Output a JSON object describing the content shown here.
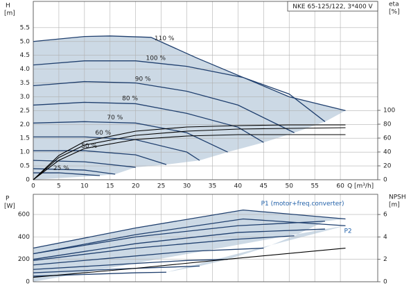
{
  "chart_data": [
    {
      "type": "line",
      "title": "NKE 65-125/122, 3*400 V",
      "y_label": "H",
      "y_unit": "[m]",
      "y2_label": "eta",
      "y2_unit": "[%]",
      "x_label": "Q [m³/h]",
      "xlim": [
        0,
        67.3
      ],
      "xticks": [
        0,
        5,
        10,
        15,
        20,
        25,
        30,
        35,
        40,
        45,
        50,
        55,
        60
      ],
      "ylim": [
        0,
        6.45
      ],
      "yticks": [
        0,
        0.5,
        {
          "value": 1,
          "label": "1.0"
        },
        1.5,
        {
          "value": 2,
          "label": "2.0"
        },
        2.5,
        {
          "value": 3,
          "label": "3.0"
        },
        3.5,
        {
          "value": 4,
          "label": "4.0"
        },
        4.5,
        {
          "value": 5,
          "label": "5.0"
        },
        5.5
      ],
      "y2lim": [
        0,
        257
      ],
      "y2ticks": [
        0,
        20,
        40,
        60,
        80,
        100
      ],
      "grid": true,
      "curve_label": "inline",
      "shade": "#c3d2e0",
      "series": [
        {
          "name": "110 %",
          "color": "#1f3f6e",
          "x": [
            0,
            10,
            15,
            23,
            32,
            41,
            50,
            61
          ],
          "values": [
            5.0,
            5.18,
            5.2,
            5.15,
            4.4,
            3.7,
            3.0,
            2.5
          ]
        },
        {
          "name": "100 %",
          "color": "#1f3f6e",
          "x": [
            0,
            10,
            20,
            30,
            41,
            50,
            57
          ],
          "values": [
            4.15,
            4.3,
            4.3,
            4.1,
            3.7,
            3.1,
            2.1
          ]
        },
        {
          "name": "90 %",
          "color": "#1f3f6e",
          "x": [
            0,
            10,
            20,
            30,
            40,
            51
          ],
          "values": [
            3.4,
            3.55,
            3.5,
            3.2,
            2.7,
            1.7
          ]
        },
        {
          "name": "80 %",
          "color": "#1f3f6e",
          "x": [
            0,
            10,
            20,
            30,
            40,
            45
          ],
          "values": [
            2.7,
            2.8,
            2.75,
            2.4,
            1.9,
            1.35
          ]
        },
        {
          "name": "70 %",
          "color": "#1f3f6e",
          "x": [
            0,
            10,
            20,
            30,
            38
          ],
          "values": [
            2.05,
            2.1,
            2.05,
            1.7,
            1.0
          ]
        },
        {
          "name": "60 %",
          "color": "#1f3f6e",
          "x": [
            0,
            10,
            20,
            30,
            32.5
          ],
          "values": [
            1.55,
            1.55,
            1.45,
            1.0,
            0.7
          ]
        },
        {
          "name": "50 %",
          "color": "#1f3f6e",
          "x": [
            0,
            10,
            20,
            26
          ],
          "values": [
            1.05,
            1.05,
            0.9,
            0.55
          ]
        },
        {
          "color": "#1f3f6e",
          "x": [
            0,
            10,
            20
          ],
          "values": [
            0.7,
            0.65,
            0.45
          ]
        },
        {
          "color": "#1f3f6e",
          "x": [
            0,
            10,
            16
          ],
          "values": [
            0.4,
            0.35,
            0.2
          ]
        },
        {
          "name": "25 %",
          "color": "#1f3f6e",
          "x": [
            0,
            5,
            13
          ],
          "values": [
            0.25,
            0.25,
            0.15
          ]
        },
        {
          "color": "#000000",
          "axis": "y2",
          "x": [
            0,
            5,
            10,
            20,
            30,
            40,
            50,
            61
          ],
          "values": [
            0,
            35,
            55,
            70,
            76,
            78,
            79,
            79
          ]
        },
        {
          "color": "#000000",
          "axis": "y2",
          "x": [
            0,
            5,
            10,
            20,
            30,
            40,
            50,
            61
          ],
          "values": [
            0,
            32,
            50,
            64,
            70,
            73,
            74,
            75
          ]
        },
        {
          "color": "#000000",
          "axis": "y2",
          "x": [
            0,
            5,
            10,
            20,
            30,
            40,
            50,
            61
          ],
          "values": [
            0,
            28,
            45,
            58,
            63,
            65,
            65,
            65
          ]
        }
      ]
    },
    {
      "type": "line",
      "y_label": "P",
      "y_unit": "[W]",
      "y2_label": "NPSH",
      "y2_unit": "[m]",
      "xlim": [
        0,
        67.3
      ],
      "xticks": [
        0,
        5,
        10,
        15,
        20,
        25,
        30,
        35,
        40,
        45,
        50,
        55,
        60
      ],
      "ylim": [
        0,
        780
      ],
      "yticks": [
        0,
        200,
        400,
        600
      ],
      "y2lim": [
        0,
        7.8
      ],
      "y2ticks": [
        0,
        2,
        4,
        6
      ],
      "grid": true,
      "curve_label": "end",
      "shade": "#c3d2e0",
      "series": [
        {
          "name": "P1 (motor+freq.converter)",
          "color": "#1f3f6e",
          "x": [
            0,
            20,
            41,
            61
          ],
          "values": [
            300,
            480,
            640,
            560
          ]
        },
        {
          "color": "#1f3f6e",
          "x": [
            0,
            20,
            40,
            57
          ],
          "values": [
            250,
            400,
            500,
            540
          ]
        },
        {
          "color": "#1f3f6e",
          "x": [
            0,
            20,
            40,
            51
          ],
          "values": [
            190,
            300,
            380,
            410
          ]
        },
        {
          "color": "#1f3f6e",
          "x": [
            0,
            15,
            30,
            45
          ],
          "values": [
            150,
            210,
            270,
            300
          ]
        },
        {
          "color": "#1f3f6e",
          "x": [
            0,
            15,
            30,
            38
          ],
          "values": [
            110,
            150,
            190,
            200
          ]
        },
        {
          "color": "#1f3f6e",
          "x": [
            0,
            10,
            20,
            32.5
          ],
          "values": [
            80,
            100,
            120,
            140
          ]
        },
        {
          "color": "#1f3f6e",
          "x": [
            0,
            10,
            20,
            26
          ],
          "values": [
            50,
            65,
            80,
            85
          ]
        },
        {
          "name": "P2",
          "color": "#1f3f6e",
          "x": [
            0,
            20,
            41,
            61
          ],
          "values": [
            250,
            420,
            560,
            500
          ]
        },
        {
          "color": "#1f3f6e",
          "x": [
            0,
            20,
            40,
            57
          ],
          "values": [
            200,
            340,
            440,
            470
          ]
        },
        {
          "color": "#000000",
          "axis": "y2",
          "x": [
            0,
            20,
            40,
            61
          ],
          "values": [
            0.4,
            1.2,
            2.1,
            3.0
          ]
        }
      ]
    }
  ]
}
